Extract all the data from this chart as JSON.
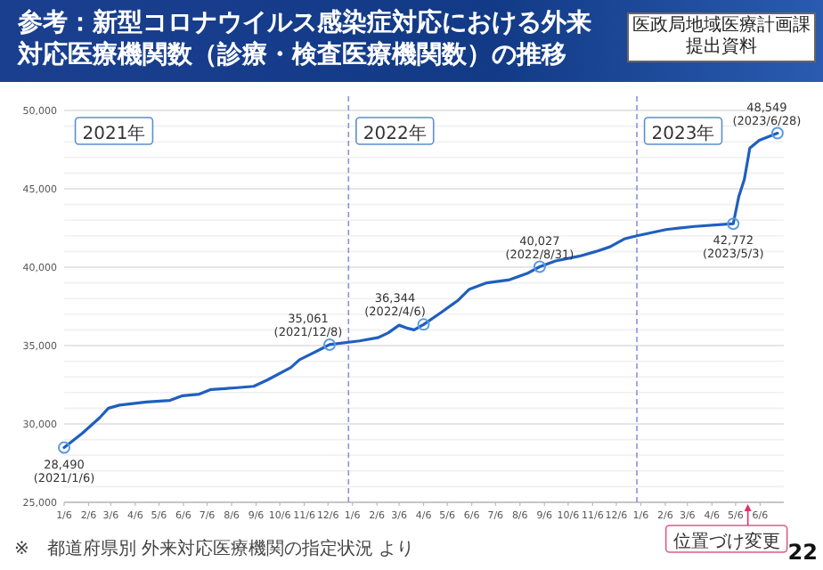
{
  "chart_data": {
    "type": "line",
    "title": "参考：新型コロナウイルス感染症対応における外来対応医療機関数（診療・検査医療機関数）の推移",
    "x": [
      "2021-01-06",
      "2021-01-29",
      "2021-02-20",
      "2021-03-03",
      "2021-03-10",
      "2021-03-17",
      "2021-04-20",
      "2021-05-20",
      "2021-06-05",
      "2021-06-26",
      "2021-07-11",
      "2021-08-10",
      "2021-09-03",
      "2021-09-20",
      "2021-10-20",
      "2021-10-31",
      "2021-11-12",
      "2021-11-28",
      "2021-12-08",
      "2022-01-15",
      "2022-02-07",
      "2022-02-20",
      "2022-03-06",
      "2022-03-17",
      "2022-03-25",
      "2022-04-06",
      "2022-04-28",
      "2022-05-20",
      "2022-06-03",
      "2022-06-25",
      "2022-07-24",
      "2022-08-15",
      "2022-08-31",
      "2022-09-20",
      "2022-10-20",
      "2022-11-10",
      "2022-11-28",
      "2022-12-16",
      "2023-01-01",
      "2023-02-07",
      "2023-03-15",
      "2023-05-03",
      "2023-05-10",
      "2023-05-17",
      "2023-05-24",
      "2023-06-05",
      "2023-06-28"
    ],
    "series": [
      {
        "color": "#1f5fbf",
        "values": [
          28490,
          29400,
          30400,
          31000,
          31100,
          31200,
          31400,
          31500,
          31800,
          31900,
          32200,
          32300,
          32400,
          32800,
          33600,
          34100,
          34400,
          34800,
          35061,
          35300,
          35500,
          35800,
          36300,
          36100,
          36000,
          36344,
          37100,
          37900,
          38600,
          39000,
          39200,
          39600,
          40027,
          40400,
          40700,
          41000,
          41300,
          41800,
          42000,
          42400,
          42600,
          42772,
          44500,
          45600,
          47600,
          48100,
          48549
        ]
      }
    ],
    "xlim": [
      "2021-01-06",
      "2023-07-06"
    ],
    "ylim": [
      25000,
      50000
    ],
    "xticks": [
      {
        "value": "2021-01-06",
        "label": "1/6"
      },
      {
        "value": "2021-02-06",
        "label": "2/6"
      },
      {
        "value": "2021-03-06",
        "label": "3/6"
      },
      {
        "value": "2021-04-06",
        "label": "4/6"
      },
      {
        "value": "2021-05-06",
        "label": "5/6"
      },
      {
        "value": "2021-06-06",
        "label": "6/6"
      },
      {
        "value": "2021-07-06",
        "label": "7/6"
      },
      {
        "value": "2021-08-06",
        "label": "8/6"
      },
      {
        "value": "2021-09-06",
        "label": "9/6"
      },
      {
        "value": "2021-10-06",
        "label": "10/6"
      },
      {
        "value": "2021-11-06",
        "label": "11/6"
      },
      {
        "value": "2021-12-06",
        "label": "12/6"
      },
      {
        "value": "2022-01-06",
        "label": "1/6"
      },
      {
        "value": "2022-02-06",
        "label": "2/6"
      },
      {
        "value": "2022-03-06",
        "label": "3/6"
      },
      {
        "value": "2022-04-06",
        "label": "4/6"
      },
      {
        "value": "2022-05-06",
        "label": "5/6"
      },
      {
        "value": "2022-06-06",
        "label": "6/6"
      },
      {
        "value": "2022-07-06",
        "label": "7/6"
      },
      {
        "value": "2022-08-06",
        "label": "8/6"
      },
      {
        "value": "2022-09-06",
        "label": "9/6"
      },
      {
        "value": "2022-10-06",
        "label": "10/6"
      },
      {
        "value": "2022-11-06",
        "label": "11/6"
      },
      {
        "value": "2022-12-06",
        "label": "12/6"
      },
      {
        "value": "2023-01-06",
        "label": "1/6"
      },
      {
        "value": "2023-02-06",
        "label": "2/6"
      },
      {
        "value": "2023-03-06",
        "label": "3/6"
      },
      {
        "value": "2023-04-06",
        "label": "4/6"
      },
      {
        "value": "2023-05-06",
        "label": "5/6"
      },
      {
        "value": "2023-06-06",
        "label": "6/6"
      }
    ],
    "yticks": [
      {
        "value": 25000,
        "label": "25,000"
      },
      {
        "value": 26000,
        "label": null
      },
      {
        "value": 27000,
        "label": null
      },
      {
        "value": 28000,
        "label": null
      },
      {
        "value": 29000,
        "label": null
      },
      {
        "value": 30000,
        "label": "30,000"
      },
      {
        "value": 31000,
        "label": null
      },
      {
        "value": 32000,
        "label": null
      },
      {
        "value": 33000,
        "label": null
      },
      {
        "value": 34000,
        "label": null
      },
      {
        "value": 35000,
        "label": "35,000"
      },
      {
        "value": 36000,
        "label": null
      },
      {
        "value": 37000,
        "label": null
      },
      {
        "value": 38000,
        "label": null
      },
      {
        "value": 39000,
        "label": null
      },
      {
        "value": 40000,
        "label": "40,000"
      },
      {
        "value": 41000,
        "label": null
      },
      {
        "value": 42000,
        "label": null
      },
      {
        "value": 43000,
        "label": null
      },
      {
        "value": 44000,
        "label": null
      },
      {
        "value": 45000,
        "label": "45,000"
      },
      {
        "value": 46000,
        "label": null
      },
      {
        "value": 47000,
        "label": null
      },
      {
        "value": 48000,
        "label": null
      },
      {
        "value": 49000,
        "label": null
      },
      {
        "value": 50000,
        "label": "50,000"
      }
    ],
    "grid": "y",
    "ref_lines": [
      {
        "axis": "x",
        "value": "2022-01-01",
        "color": "#8f8fe0",
        "line_style": "dashed"
      },
      {
        "axis": "x",
        "value": "2023-01-01",
        "color": "#8f8fe0",
        "line_style": "dashed"
      }
    ],
    "annotations": [
      "医政局地域医療計画課提出資料",
      "2021年",
      "2022年",
      "2023年",
      "※　都道府県別 外来対応医療機関の指定状況 より",
      "22",
      "位置づけ変更",
      {
        "text": "28,490\n(2021/1/6)",
        "x": "2021-01-06",
        "y": 28490
      },
      {
        "text": "35,061\n(2021/12/8)",
        "x": "2021-12-08",
        "y": 35061
      },
      {
        "text": "36,344\n(2022/4/6)",
        "x": "2022-04-06",
        "y": 36344
      },
      {
        "text": "40,027\n(2022/8/31)",
        "x": "2022-08-31",
        "y": 40027
      },
      {
        "text": "42,772\n(2023/5/3)",
        "x": "2023-05-03",
        "y": 42772
      },
      {
        "text": "48,549\n(2023/6/28)",
        "x": "2023-06-28",
        "y": 48549
      }
    ]
  }
}
